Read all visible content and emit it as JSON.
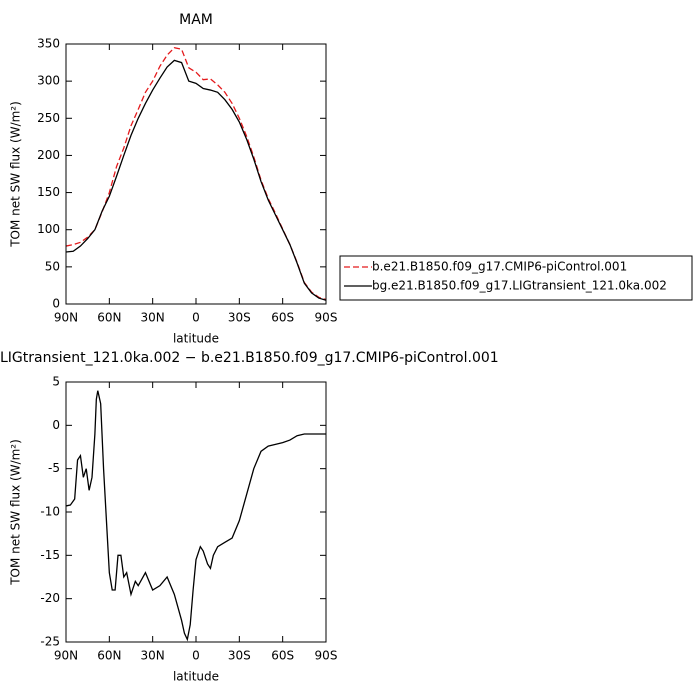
{
  "chart_data": [
    {
      "type": "line",
      "title": "MAM",
      "x_label": "latitude",
      "y_label": "TOM net SW flux (W/m²)",
      "x": [
        90,
        85,
        80,
        75,
        70,
        65,
        60,
        55,
        50,
        45,
        40,
        35,
        30,
        25,
        20,
        15,
        10,
        5,
        0,
        -5,
        -10,
        -15,
        -20,
        -25,
        -30,
        -35,
        -40,
        -45,
        -50,
        -55,
        -60,
        -65,
        -70,
        -75,
        -80,
        -85,
        -90
      ],
      "series": [
        {
          "name": "b.e21.B1850.f09_g17.CMIP6-piControl.001",
          "color": "#e41a1c",
          "dash": "dashed",
          "values": [
            78,
            80,
            83,
            90,
            100,
            124,
            150,
            185,
            210,
            240,
            262,
            285,
            300,
            320,
            335,
            345,
            343,
            318,
            312,
            302,
            303,
            295,
            285,
            270,
            250,
            226,
            198,
            167,
            142,
            122,
            101,
            80,
            56,
            29,
            16,
            9,
            6
          ]
        },
        {
          "name": "bg.e21.B1850.f09_g17.LIGtransient_121.0ka.002",
          "color": "#000000",
          "dash": "solid",
          "values": [
            70,
            71,
            78,
            88,
            100,
            125,
            145,
            172,
            200,
            227,
            250,
            270,
            288,
            304,
            319,
            328,
            325,
            300,
            297,
            290,
            288,
            285,
            275,
            262,
            245,
            222,
            195,
            165,
            140,
            120,
            100,
            80,
            55,
            28,
            15,
            8,
            5
          ]
        }
      ],
      "xlim": [
        90,
        -90
      ],
      "xticks": [
        {
          "value": 90,
          "label": "90N"
        },
        {
          "value": 60,
          "label": "60N"
        },
        {
          "value": 30,
          "label": "30N"
        },
        0,
        {
          "value": -30,
          "label": "30S"
        },
        {
          "value": -60,
          "label": "60S"
        },
        {
          "value": -90,
          "label": "90S"
        }
      ],
      "ylim": [
        0,
        350
      ],
      "yticks": [
        0,
        50,
        100,
        150,
        200,
        250,
        300,
        350
      ],
      "legend": "right"
    },
    {
      "type": "line",
      "title": "LIGtransient_121.0ka.002 − b.e21.B1850.f09_g17.CMIP6-piControl.001",
      "x_label": "latitude",
      "y_label": "TOM net SW flux (W/m²)",
      "x": [
        90,
        87,
        84,
        82,
        80,
        78,
        76,
        74,
        72,
        70,
        69,
        68,
        66,
        64,
        62,
        60,
        58,
        56,
        54,
        52,
        50,
        48,
        45,
        42,
        40,
        35,
        30,
        25,
        20,
        15,
        10,
        8,
        6,
        4,
        2,
        0,
        -3,
        -5,
        -8,
        -10,
        -12,
        -15,
        -20,
        -25,
        -30,
        -35,
        -40,
        -45,
        -50,
        -55,
        -60,
        -65,
        -70,
        -75,
        -80,
        -85,
        -90
      ],
      "series": [
        {
          "name": null,
          "color": "#000000",
          "dash": "solid",
          "values": [
            -9.3,
            -9.2,
            -8.5,
            -4,
            -3.5,
            -6,
            -5,
            -7.5,
            -6,
            -1,
            3,
            4,
            2.5,
            -5,
            -11,
            -17,
            -19,
            -19,
            -15,
            -15,
            -17.5,
            -17,
            -19.5,
            -18,
            -18.5,
            -17,
            -19,
            -18.5,
            -17.5,
            -19.5,
            -22.5,
            -24,
            -24.7,
            -23,
            -19,
            -15.5,
            -14,
            -14.5,
            -16,
            -16.5,
            -15,
            -14,
            -13.5,
            -13,
            -11,
            -8,
            -5,
            -3,
            -2.4,
            -2.2,
            -2,
            -1.7,
            -1.2,
            -1,
            -1,
            -1,
            -1
          ]
        }
      ],
      "xlim": [
        90,
        -90
      ],
      "xticks": [
        {
          "value": 90,
          "label": "90N"
        },
        {
          "value": 60,
          "label": "60N"
        },
        {
          "value": 30,
          "label": "30N"
        },
        0,
        {
          "value": -30,
          "label": "30S"
        },
        {
          "value": -60,
          "label": "60S"
        },
        {
          "value": -90,
          "label": "90S"
        }
      ],
      "ylim": [
        -25,
        5
      ],
      "yticks": [
        -25,
        -20,
        -15,
        -10,
        -5,
        0,
        5
      ]
    }
  ]
}
